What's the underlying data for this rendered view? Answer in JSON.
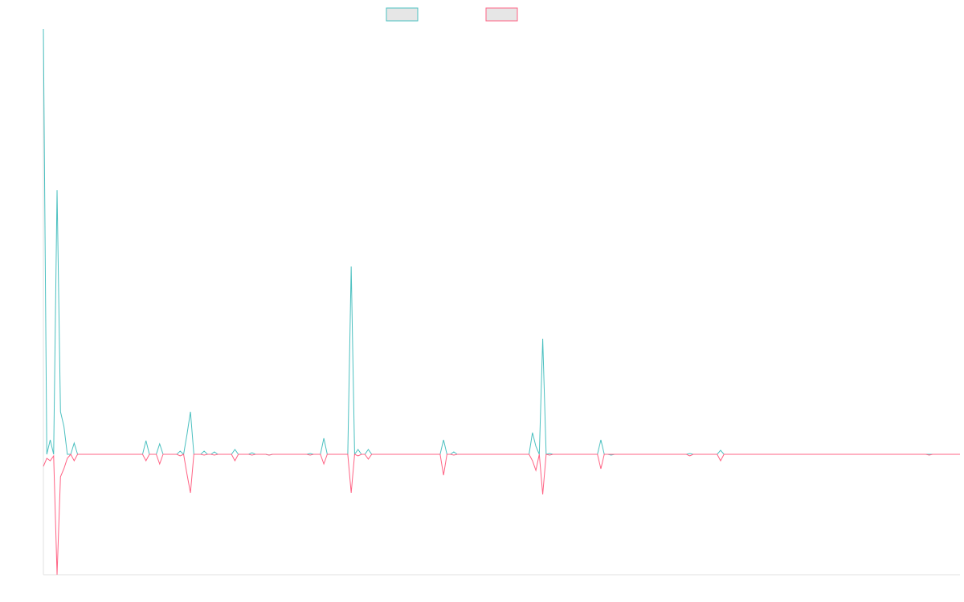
{
  "chart_data": {
    "type": "line",
    "ylim": [
      -150,
      530
    ],
    "series": [
      {
        "color": "#4bc0c0",
        "values": [
          530,
          0,
          18,
          0,
          329,
          53,
          35,
          0,
          0,
          14,
          0,
          0,
          0,
          0,
          0,
          0,
          0,
          0,
          0,
          0,
          0,
          0,
          0,
          0,
          0,
          0,
          0,
          0,
          0,
          0,
          17,
          0,
          0,
          0,
          13,
          0,
          0,
          0,
          0,
          0,
          4,
          0,
          25,
          53,
          0,
          0,
          0,
          4,
          0,
          0,
          3,
          0,
          0,
          0,
          0,
          0,
          6,
          0,
          0,
          0,
          0,
          2,
          0,
          0,
          0,
          0,
          -1,
          0,
          0,
          0,
          0,
          0,
          0,
          0,
          0,
          0,
          0,
          0,
          1,
          0,
          0,
          0,
          20,
          0,
          0,
          0,
          0,
          0,
          0,
          0,
          234,
          0,
          6,
          0,
          0,
          6,
          0,
          0,
          0,
          0,
          0,
          0,
          0,
          0,
          0,
          0,
          0,
          0,
          0,
          0,
          0,
          0,
          0,
          0,
          0,
          0,
          0,
          18,
          0,
          0,
          3,
          0,
          0,
          0,
          0,
          0,
          0,
          0,
          0,
          0,
          0,
          0,
          0,
          0,
          0,
          0,
          0,
          0,
          0,
          0,
          0,
          0,
          0,
          27,
          10,
          0,
          144,
          0,
          1,
          0,
          0,
          0,
          0,
          0,
          0,
          0,
          0,
          0,
          0,
          0,
          0,
          0,
          0,
          18,
          0,
          0,
          -1,
          0,
          0,
          0,
          0,
          0,
          0,
          0,
          0,
          0,
          0,
          0,
          0,
          0,
          0,
          0,
          0,
          0,
          0,
          0,
          0,
          0,
          0,
          1,
          0,
          0,
          0,
          0,
          0,
          0,
          0,
          0,
          5,
          0,
          0,
          0,
          0,
          0,
          0,
          0,
          0,
          0,
          0,
          0,
          0,
          0,
          0,
          0,
          0,
          0,
          0,
          0,
          0,
          0,
          0,
          0,
          0,
          0,
          0,
          0,
          0,
          0,
          0,
          0,
          0,
          0,
          0,
          0,
          0,
          0,
          0,
          0,
          0,
          0,
          0,
          0,
          0,
          0,
          0,
          0,
          0,
          0,
          0,
          0,
          0,
          0,
          0,
          0,
          0,
          0,
          0,
          0,
          0,
          0,
          0,
          0,
          0,
          0,
          0,
          0,
          0,
          0,
          0
        ]
      },
      {
        "color": "#ff6384",
        "values": [
          -15,
          -5,
          -8,
          -2,
          -150,
          -28,
          -18,
          -5,
          0,
          -8,
          0,
          0,
          0,
          0,
          0,
          0,
          0,
          0,
          0,
          0,
          0,
          0,
          0,
          0,
          0,
          0,
          0,
          0,
          0,
          0,
          -8,
          0,
          0,
          0,
          -12,
          0,
          0,
          0,
          0,
          0,
          -2,
          0,
          -25,
          -48,
          0,
          0,
          0,
          -1,
          0,
          0,
          -1,
          0,
          0,
          0,
          0,
          0,
          -8,
          0,
          0,
          0,
          0,
          -1,
          0,
          0,
          0,
          0,
          -1,
          0,
          0,
          0,
          0,
          0,
          0,
          0,
          0,
          0,
          0,
          0,
          -1,
          0,
          0,
          0,
          -12,
          0,
          0,
          0,
          0,
          0,
          0,
          0,
          -48,
          0,
          -2,
          0,
          0,
          -6,
          0,
          0,
          0,
          0,
          0,
          0,
          0,
          0,
          0,
          0,
          0,
          0,
          0,
          0,
          0,
          0,
          0,
          0,
          0,
          0,
          0,
          -26,
          0,
          0,
          -1,
          0,
          0,
          0,
          0,
          0,
          0,
          0,
          0,
          0,
          0,
          0,
          0,
          0,
          0,
          0,
          0,
          0,
          0,
          0,
          0,
          0,
          0,
          -8,
          -20,
          0,
          -50,
          0,
          -1,
          0,
          0,
          0,
          0,
          0,
          0,
          0,
          0,
          0,
          0,
          0,
          0,
          0,
          0,
          -18,
          0,
          0,
          0,
          0,
          0,
          0,
          0,
          0,
          0,
          0,
          0,
          0,
          0,
          0,
          0,
          0,
          0,
          0,
          0,
          0,
          0,
          0,
          0,
          0,
          0,
          -2,
          0,
          0,
          0,
          0,
          0,
          0,
          0,
          0,
          -8,
          0,
          0,
          0,
          0,
          0,
          0,
          0,
          0,
          0,
          0,
          0,
          0,
          0,
          0,
          0,
          0,
          0,
          0,
          0,
          0,
          0,
          0,
          0,
          0,
          0,
          0,
          0,
          0,
          0,
          0,
          0,
          0,
          0,
          0,
          0,
          0,
          0,
          0,
          0,
          0,
          0,
          0,
          0,
          0,
          0,
          0,
          0,
          0,
          0,
          0,
          0,
          0,
          0,
          0,
          0,
          0,
          0,
          0,
          0,
          0,
          -1,
          0,
          0,
          0,
          0,
          0,
          0,
          0,
          0,
          0
        ]
      }
    ]
  }
}
